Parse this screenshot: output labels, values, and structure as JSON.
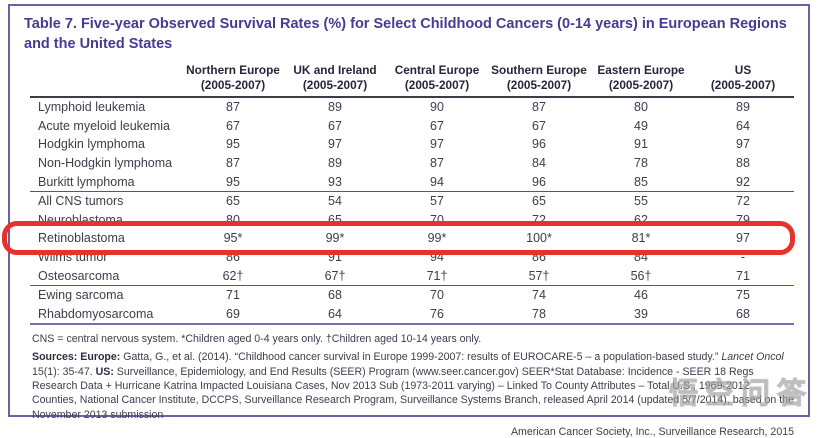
{
  "title": "Table 7. Five-year Observed Survival Rates (%) for Select Childhood Cancers (0-14 years) in European Regions and the United States",
  "colors": {
    "title_purple": "#453b94",
    "panel_border_purple": "#6e5fa6",
    "annotation_red": "#e8312a",
    "body_text": "#3d3d4c"
  },
  "table": {
    "columns": [
      {
        "name": "Northern Europe",
        "period": "(2005-2007)"
      },
      {
        "name": "UK and Ireland",
        "period": "(2005-2007)"
      },
      {
        "name": "Central Europe",
        "period": "(2005-2007)"
      },
      {
        "name": "Southern Europe",
        "period": "(2005-2007)"
      },
      {
        "name": "Eastern Europe",
        "period": "(2005-2007)"
      },
      {
        "name": "US",
        "period": "(2005-2007)"
      }
    ],
    "groups": [
      {
        "rows": [
          {
            "label": "Lymphoid leukemia",
            "values": [
              "87",
              "89",
              "90",
              "87",
              "80",
              "89"
            ]
          },
          {
            "label": "Acute myeloid leukemia",
            "values": [
              "67",
              "67",
              "67",
              "67",
              "49",
              "64"
            ]
          },
          {
            "label": "Hodgkin lymphoma",
            "values": [
              "95",
              "97",
              "97",
              "96",
              "91",
              "97"
            ]
          },
          {
            "label": "Non-Hodgkin lymphoma",
            "values": [
              "87",
              "89",
              "87",
              "84",
              "78",
              "88"
            ]
          },
          {
            "label": "Burkitt lymphoma",
            "values": [
              "95",
              "93",
              "94",
              "96",
              "85",
              "92"
            ]
          }
        ]
      },
      {
        "rows": [
          {
            "label": "All CNS tumors",
            "values": [
              "65",
              "54",
              "57",
              "65",
              "55",
              "72"
            ]
          },
          {
            "label": "Neuroblastoma",
            "values": [
              "80",
              "65",
              "70",
              "72",
              "62",
              "79"
            ]
          },
          {
            "label": "Retinoblastoma",
            "values": [
              "95*",
              "99*",
              "99*",
              "100*",
              "81*",
              "97"
            ],
            "highlighted": true
          },
          {
            "label": "Wilms tumor",
            "values": [
              "86",
              "91",
              "94",
              "86",
              "84",
              "-"
            ]
          },
          {
            "label": "Osteosarcoma",
            "values": [
              "62†",
              "67†",
              "71†",
              "57†",
              "56†",
              "71"
            ]
          }
        ]
      },
      {
        "rows": [
          {
            "label": "Ewing sarcoma",
            "values": [
              "71",
              "68",
              "70",
              "74",
              "46",
              "75"
            ]
          },
          {
            "label": "Rhabdomyosarcoma",
            "values": [
              "69",
              "64",
              "76",
              "78",
              "39",
              "68"
            ]
          }
        ]
      }
    ]
  },
  "footnote": "CNS = central nervous system. *Children aged 0-4 years only. †Children aged 10-14 years only.",
  "sources": {
    "label": "Sources:",
    "europe_label": "Europe:",
    "europe_text": "Gatta, G., et al. (2014). “Childhood cancer survival in Europe 1999-2007: results of EUROCARE-5 – a population-based study.” ",
    "journal": "Lancet Oncol",
    "journal_ref": " 15(1): 35-47. ",
    "us_label": "US:",
    "us_text": " Surveillance, Epidemiology, and End Results (SEER) Program (www.seer.cancer.gov) SEER*Stat Database: Incidence - SEER 18 Regs Research Data + Hurricane Katrina Impacted Louisiana Cases, Nov 2013 Sub (1973-2011 varying) – Linked To County Attributes – Total U.S., 1969-2012 Counties, National Cancer Institute, DCCPS, Surveillance Research Program, Surveillance Systems Branch, released April 2014 (updated 5/7/2014), based on the November 2013 submission"
  },
  "credit": "American Cancer Society, Inc., Surveillance Research, 2015",
  "watermark": "悟空问答"
}
